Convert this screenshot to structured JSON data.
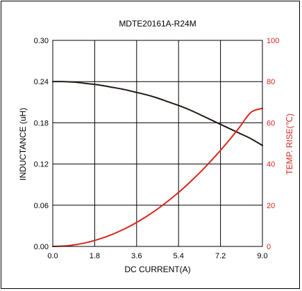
{
  "chart_data": {
    "type": "line",
    "title": "MDTE20161A-R24M",
    "xlabel": "DC CURRENT(A)",
    "ylabel_left": "INDUCTANCE (uH)",
    "ylabel_right": "TEMP. RISE(℃)",
    "x_ticks": [
      "0.0",
      "1.8",
      "3.6",
      "5.4",
      "7.2",
      "9.0"
    ],
    "y_left_ticks": [
      "0.00",
      "0.06",
      "0.12",
      "0.18",
      "0.24",
      "0.30"
    ],
    "y_right_ticks": [
      "0",
      "20",
      "40",
      "60",
      "80",
      "100"
    ],
    "xlim": [
      0,
      9.0
    ],
    "ylim_left": [
      0,
      0.3
    ],
    "ylim_right": [
      0,
      100
    ],
    "grid": true,
    "colors": {
      "inductance": "#231815",
      "temp_rise": "#d7261e",
      "right_axis": "#d7261e"
    },
    "series": [
      {
        "axis": "left",
        "x": [
          0,
          0.5,
          1.0,
          1.5,
          2.0,
          2.5,
          3.0,
          3.5,
          4.0,
          4.5,
          5.0,
          5.5,
          6.0,
          6.5,
          7.0,
          7.5,
          8.0,
          8.5,
          9.0
        ],
        "values": [
          0.24,
          0.24,
          0.239,
          0.237,
          0.235,
          0.232,
          0.229,
          0.225,
          0.221,
          0.216,
          0.21,
          0.204,
          0.197,
          0.189,
          0.181,
          0.173,
          0.165,
          0.157,
          0.147
        ]
      },
      {
        "axis": "right",
        "x": [
          0,
          0.5,
          1.0,
          1.5,
          2.0,
          2.5,
          3.0,
          3.5,
          4.0,
          4.5,
          5.0,
          5.5,
          6.0,
          6.5,
          7.0,
          7.5,
          8.0,
          8.5,
          9.0
        ],
        "values": [
          0,
          0.2,
          0.9,
          2.0,
          3.6,
          5.6,
          8.1,
          11.0,
          14.4,
          18.2,
          22.5,
          27.2,
          32.4,
          38.0,
          44.1,
          50.6,
          57.6,
          65.0,
          67.0
        ]
      }
    ]
  }
}
